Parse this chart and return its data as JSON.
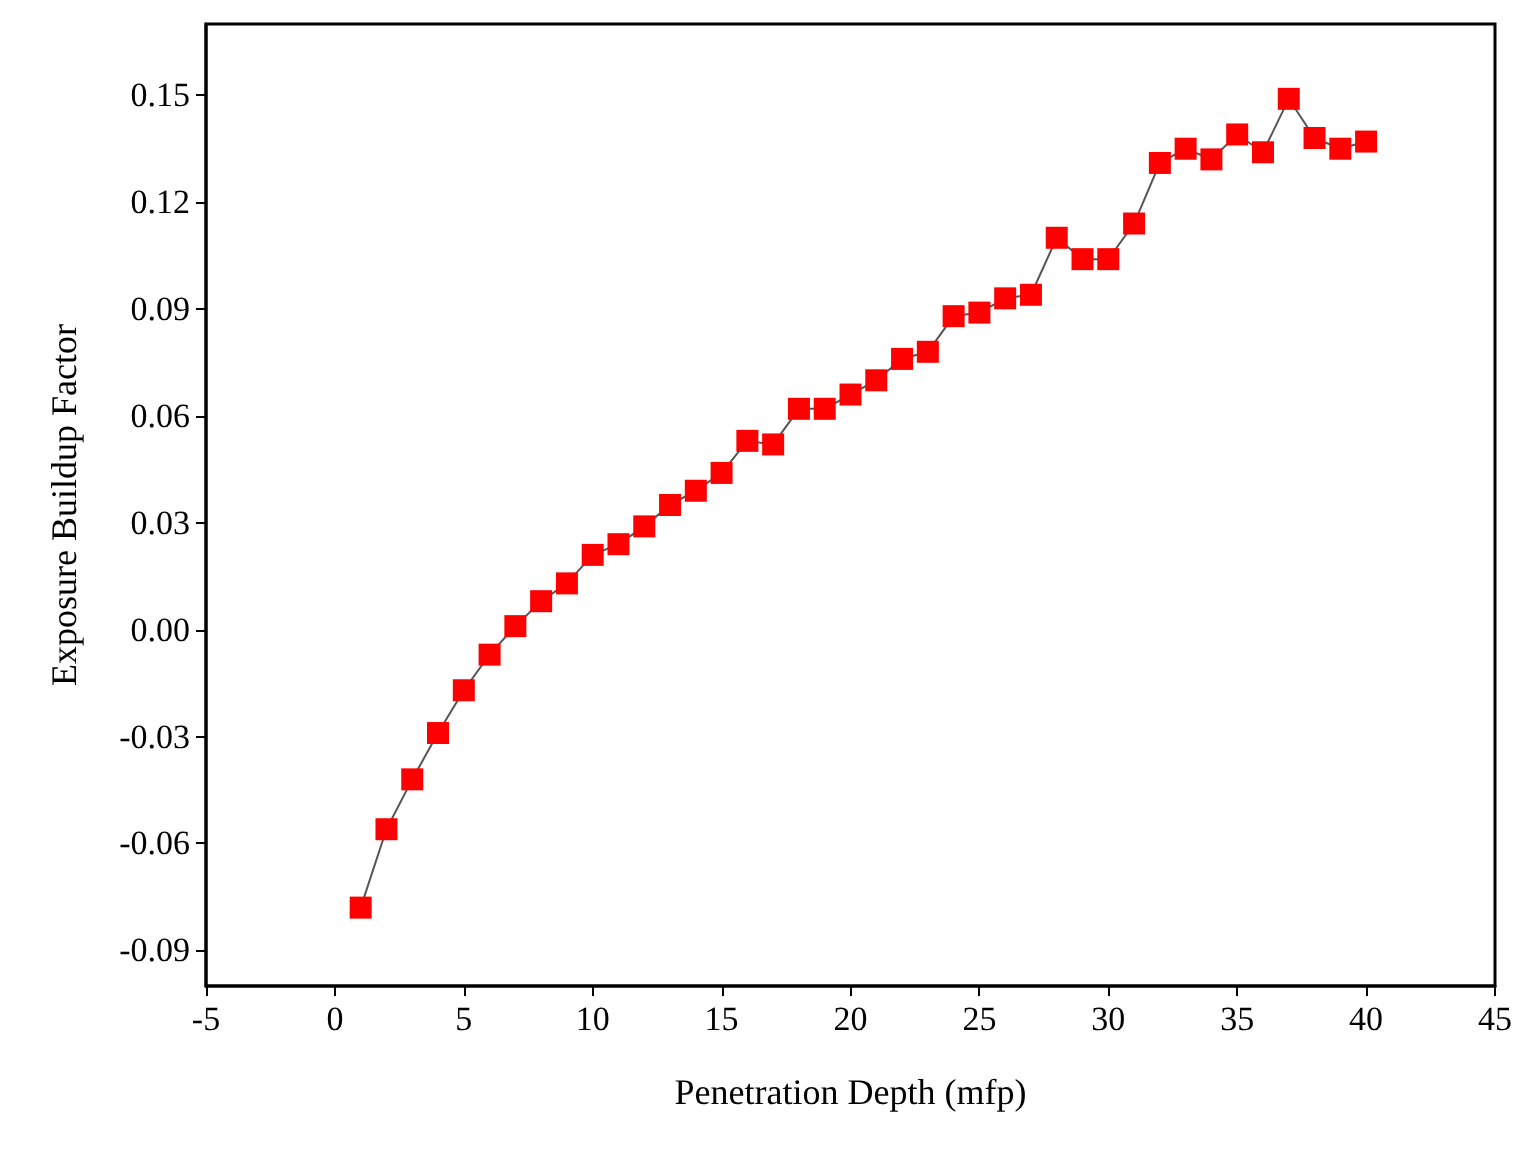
{
  "chart_data": {
    "type": "line",
    "xlabel": "Penetration Depth (mfp)",
    "ylabel": "Exposure Buildup Factor",
    "marker": "square",
    "line_style": "solid",
    "x": [
      1,
      2,
      3,
      4,
      5,
      6,
      7,
      8,
      9,
      10,
      11,
      12,
      13,
      14,
      15,
      16,
      17,
      18,
      19,
      20,
      21,
      22,
      23,
      24,
      25,
      26,
      27,
      28,
      29,
      30,
      31,
      32,
      33,
      34,
      35,
      36,
      37,
      38,
      39,
      40
    ],
    "series": [
      {
        "color": "#ff0000",
        "values": [
          -0.078,
          -0.056,
          -0.042,
          -0.029,
          -0.017,
          -0.007,
          0.001,
          0.008,
          0.013,
          0.021,
          0.024,
          0.029,
          0.035,
          0.039,
          0.044,
          0.053,
          0.052,
          0.062,
          0.062,
          0.066,
          0.07,
          0.076,
          0.078,
          0.088,
          0.089,
          0.093,
          0.094,
          0.11,
          0.104,
          0.104,
          0.114,
          0.131,
          0.135,
          0.132,
          0.139,
          0.134,
          0.149,
          0.138,
          0.135,
          0.137
        ]
      }
    ],
    "xlim": [
      -5,
      45
    ],
    "xticks": [
      -5,
      0,
      5,
      10,
      15,
      20,
      25,
      30,
      35,
      40,
      45
    ],
    "ylim": [
      -0.1,
      0.17
    ],
    "yticks": [
      {
        "value": -0.09,
        "label": "-0.09"
      },
      {
        "value": -0.06,
        "label": "-0.06"
      },
      {
        "value": -0.03,
        "label": "-0.03"
      },
      {
        "value": 0,
        "label": "0.00"
      },
      {
        "value": 0.03,
        "label": "0.03"
      },
      {
        "value": 0.06,
        "label": "0.06"
      },
      {
        "value": 0.09,
        "label": "0.09"
      },
      {
        "value": 0.12,
        "label": "0.12"
      },
      {
        "value": 0.15,
        "label": "0.15"
      }
    ]
  }
}
